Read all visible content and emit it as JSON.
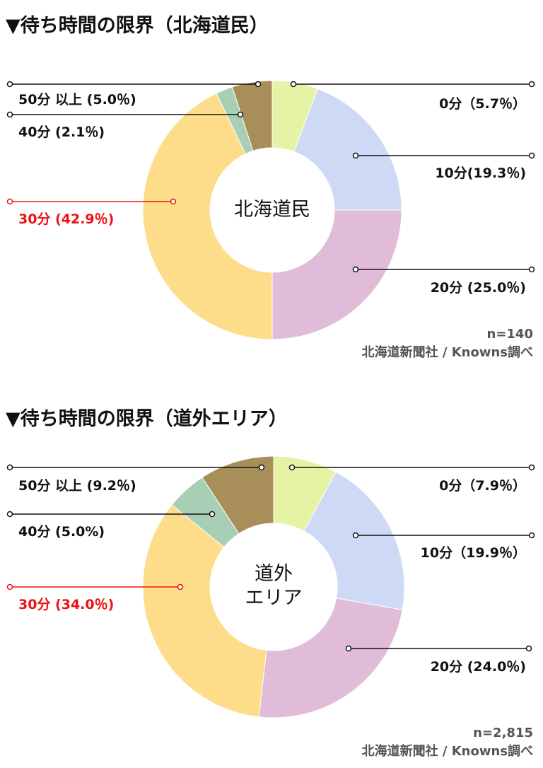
{
  "chart_data": [
    {
      "type": "pie",
      "title": "▼待ち時間の限界（北海道民）",
      "center_label": "北海道民",
      "categories": [
        "0分",
        "10分",
        "20分",
        "30分",
        "40分",
        "50分以上"
      ],
      "values": [
        5.7,
        19.3,
        25.0,
        42.9,
        2.1,
        5.0
      ],
      "labels": [
        "0分（5.7％）",
        "10分(19.3％)",
        "20分 (25.0％)",
        "30分 (42.9％)",
        "40分 (2.1％)",
        "50分 以上 (5.0％)"
      ],
      "colors": [
        "#e6f2a4",
        "#cdd9f5",
        "#e0bcd9",
        "#fddc8a",
        "#a8cfb5",
        "#a88f5a"
      ],
      "highlight_color": "#ee1111",
      "highlight_index": 3,
      "n": "n=140",
      "source": "北海道新聞社 / Knowns調べ"
    },
    {
      "type": "pie",
      "title": "▼待ち時間の限界（道外エリア）",
      "center_label": [
        "道外",
        "エリア"
      ],
      "categories": [
        "0分",
        "10分",
        "20分",
        "30分",
        "40分",
        "50分以上"
      ],
      "values": [
        7.9,
        19.9,
        24.0,
        34.0,
        5.0,
        9.2
      ],
      "labels": [
        "0分（7.9％）",
        "10分（19.9％）",
        "20分 (24.0％)",
        "30分 (34.0％)",
        "40分 (5.0%)",
        "50分 以上 (9.2％)"
      ],
      "colors": [
        "#e6f2a4",
        "#cdd9f5",
        "#e0bcd9",
        "#fddc8a",
        "#a8cfb5",
        "#a88f5a"
      ],
      "highlight_color": "#ee1111",
      "highlight_index": 3,
      "n": "n=2,815",
      "source": "北海道新聞社 / Knowns調べ"
    }
  ]
}
